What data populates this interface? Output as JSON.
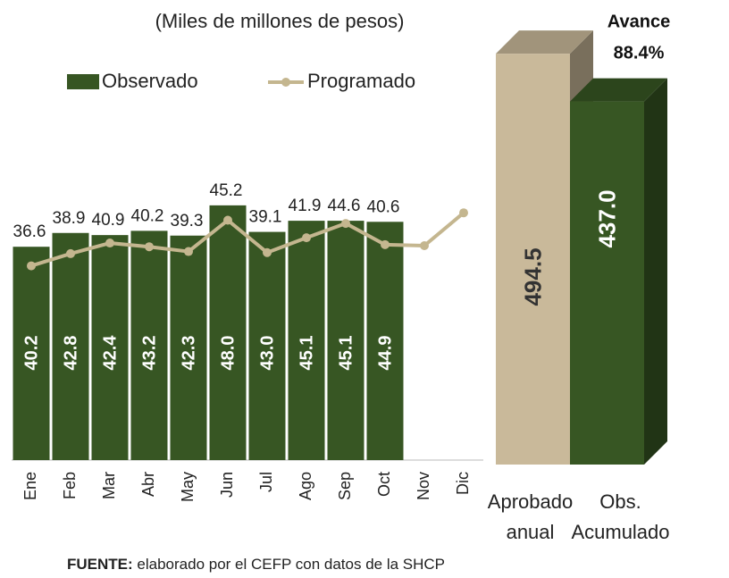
{
  "chart_data": [
    {
      "type": "bar_line",
      "subtitle": "(Miles de millones de pesos)",
      "categories": [
        "Ene",
        "Feb",
        "Mar",
        "Abr",
        "May",
        "Jun",
        "Jul",
        "Ago",
        "Sep",
        "Oct",
        "Nov",
        "Dic"
      ],
      "series": [
        {
          "name": "Observado",
          "color": "#375623",
          "kind": "bar",
          "values": [
            40.2,
            42.8,
            42.4,
            43.2,
            42.3,
            48,
            43,
            45.1,
            45.1,
            44.9,
            null,
            null
          ],
          "value_labels": [
            "40.2",
            "42.8",
            "42.4",
            "43.2",
            "42.3",
            "48.0",
            "43.0",
            "45.1",
            "45.1",
            "44.9",
            null,
            null
          ]
        },
        {
          "name": "Programado",
          "color": "#c4b68f",
          "kind": "line",
          "values": [
            36.6,
            38.9,
            40.9,
            40.2,
            39.3,
            45.2,
            39.1,
            41.9,
            44.6,
            40.6,
            40.4,
            46.6
          ],
          "value_labels": [
            "36.6",
            "38.9",
            "40.9",
            "40.2",
            "39.3",
            "45.2",
            "39.1",
            "41.9",
            "44.6",
            "40.6",
            null,
            null
          ]
        }
      ],
      "ylim": [
        0,
        50
      ]
    },
    {
      "type": "bar3d",
      "categories": [
        "Aprobado anual",
        "Obs. Acumulado"
      ],
      "values": [
        494.5,
        437
      ],
      "value_labels": [
        "494.5",
        "437.0"
      ],
      "colors": [
        "#c9b99a",
        "#375623"
      ],
      "ylim": [
        0,
        500
      ],
      "annotation": "Avance",
      "annotation_value": "88.4%"
    }
  ],
  "footer": {
    "source_label": "FUENTE:",
    "source_text": "elaborado por el CEFP con datos de la SHCP"
  }
}
